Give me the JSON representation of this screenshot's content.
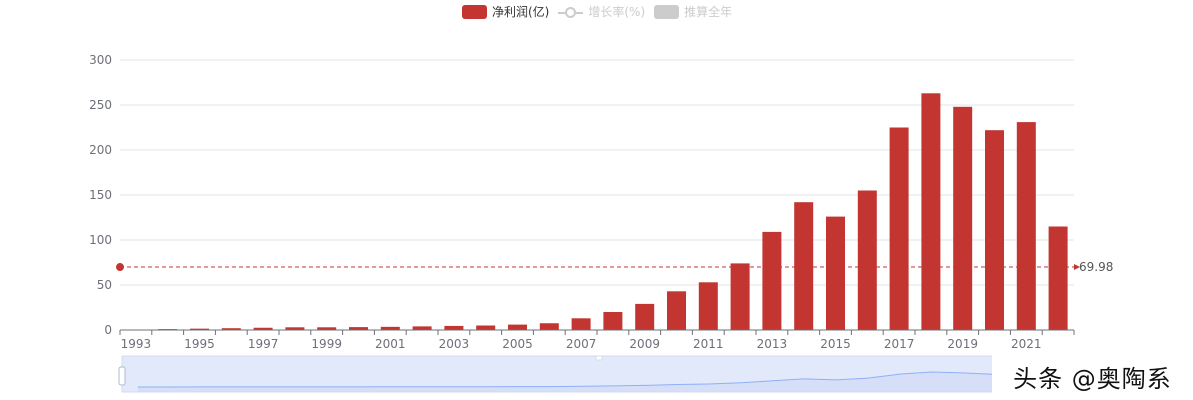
{
  "legend": {
    "items": [
      {
        "label": "净利润(亿)",
        "type": "bar",
        "color": "#c23531",
        "active": true
      },
      {
        "label": "增长率(%)",
        "type": "line",
        "color": "#cccccc",
        "active": false
      },
      {
        "label": "推算全年",
        "type": "bar",
        "color": "#cccccc",
        "active": false
      }
    ]
  },
  "colors": {
    "bar": "#c23531",
    "text_active": "#333333",
    "text_inactive": "#cccccc",
    "axis_label": "#6e7079",
    "grid": "#e6e6e6",
    "zoom_fill": "#e2e9fa",
    "zoom_line": "#8fb0f7"
  },
  "chart_data": {
    "type": "bar",
    "categories": [
      "1993",
      "1994",
      "1995",
      "1996",
      "1997",
      "1998",
      "1999",
      "2000",
      "2001",
      "2002",
      "2003",
      "2004",
      "2005",
      "2006",
      "2007",
      "2008",
      "2009",
      "2010",
      "2011",
      "2012",
      "2013",
      "2014",
      "2015",
      "2016",
      "2017",
      "2018",
      "2019",
      "2020",
      "2021",
      "2022"
    ],
    "x_tick_labels": [
      "1993",
      "1995",
      "1997",
      "1999",
      "2001",
      "2003",
      "2005",
      "2007",
      "2009",
      "2011",
      "2013",
      "2015",
      "2017",
      "2019",
      "2021"
    ],
    "series": [
      {
        "name": "净利润(亿)",
        "values": [
          0.5,
          1,
          1.5,
          2,
          2.5,
          3,
          3,
          3.2,
          3.5,
          4,
          4.5,
          5,
          6,
          7.5,
          13,
          20,
          29,
          43,
          53,
          74,
          109,
          142,
          126,
          155,
          225,
          263,
          248,
          222,
          231,
          115
        ]
      }
    ],
    "ylim": [
      0,
      300
    ],
    "y_ticks": [
      "0",
      "50",
      "100",
      "150",
      "200",
      "250",
      "300"
    ],
    "mark_line": {
      "value": 69.98,
      "label": "69.98",
      "style": "dashed"
    },
    "grid": true,
    "legend_position": "top-center",
    "datazoom": {
      "start_percent": 0,
      "end_percent": 100
    }
  },
  "watermark": {
    "text": "头条 @奥陶系"
  }
}
